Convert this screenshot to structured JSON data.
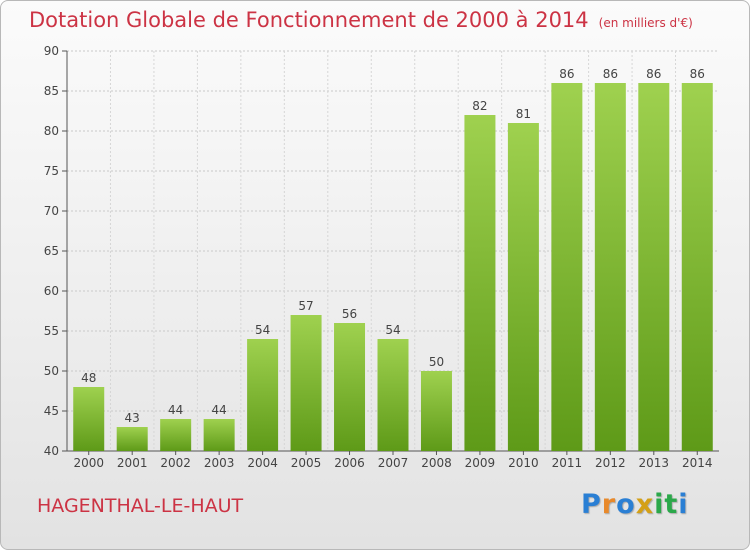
{
  "header": {
    "title": "Dotation Globale de Fonctionnement de 2000 à 2014",
    "unit": "(en milliers d'€)"
  },
  "footer": {
    "commune": "HAGENTHAL-LE-HAUT",
    "logo_letters": [
      "P",
      "r",
      "o",
      "x",
      "i",
      "t",
      "i"
    ],
    "logo_colors": [
      "#2a7fd4",
      "#e8892b",
      "#2a7fd4",
      "#d4a017",
      "#2ba84a",
      "#2ba84a",
      "#2a7fd4"
    ]
  },
  "chart_data": {
    "type": "bar",
    "title": "Dotation Globale de Fonctionnement de 2000 à 2014",
    "xlabel": "",
    "ylabel": "",
    "categories": [
      "2000",
      "2001",
      "2002",
      "2003",
      "2004",
      "2005",
      "2006",
      "2007",
      "2008",
      "2009",
      "2010",
      "2011",
      "2012",
      "2013",
      "2014"
    ],
    "values": [
      48,
      43,
      44,
      44,
      54,
      57,
      56,
      54,
      50,
      82,
      81,
      86,
      86,
      86,
      86
    ],
    "ylim": [
      40,
      90
    ],
    "yticks": [
      40,
      45,
      50,
      55,
      60,
      65,
      70,
      75,
      80,
      85,
      90
    ],
    "grid": true,
    "bar_color_top": "#9fd14f",
    "bar_color_bottom": "#5e9a18"
  }
}
